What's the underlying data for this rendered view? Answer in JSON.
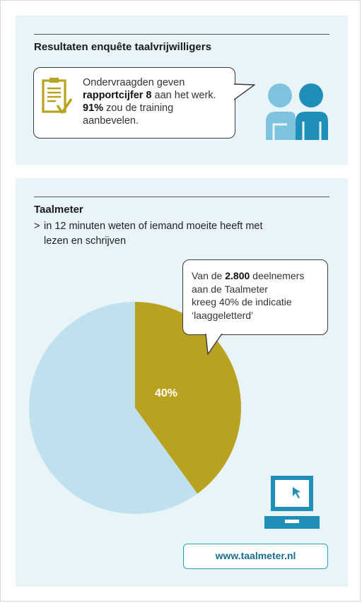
{
  "survey": {
    "title": "Resultaten enquête taalvrijwilligers",
    "line1": "Ondervraagden geven",
    "line2_bold": "rapportcijfer 8",
    "line2_rest": " aan het werk.",
    "line3_bold": "91%",
    "line3_rest": " zou de training",
    "line4": "aanbevelen."
  },
  "taalmeter": {
    "title": "Taalmeter",
    "marker": ">",
    "desc_line1": "in 12 minuten weten of iemand moeite heeft met",
    "desc_line2": "lezen en schrijven",
    "callout_prefix": "Van de ",
    "callout_bold": "2.800",
    "callout_rest1": " deelnemers",
    "callout_line2": "aan de Taalmeter",
    "callout_line3": "kreeg 40% de indicatie",
    "callout_line4": "‘laaggeletterd’",
    "url": "www.taalmeter.nl"
  },
  "chart_data": {
    "type": "pie",
    "slices": [
      {
        "label": "40%",
        "value": 40,
        "color": "#b9a21f"
      },
      {
        "label": "",
        "value": 60,
        "color": "#bfe0ee"
      }
    ]
  },
  "colors": {
    "gold": "#b9a21f",
    "light_blue": "#bfe0ee",
    "icon_light": "#7ec3de",
    "icon_dark": "#1f8fba",
    "panel": "#e9f4f9"
  },
  "icons": {
    "clipboard": "clipboard-check-icon",
    "people": "two-people-icon",
    "laptop": "laptop-cursor-icon"
  }
}
